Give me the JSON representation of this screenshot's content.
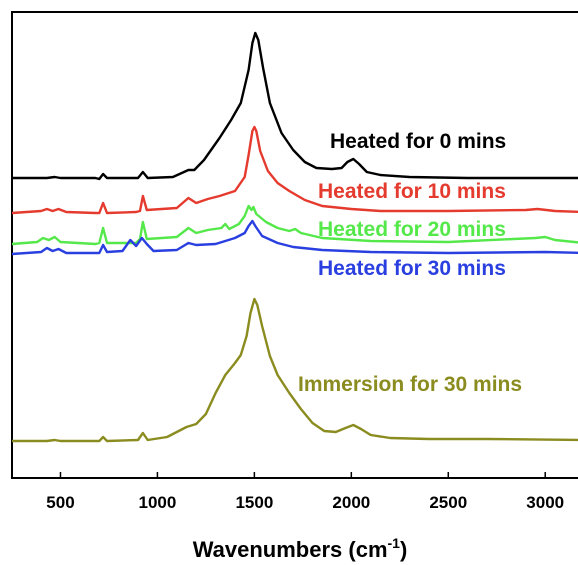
{
  "chart_data": {
    "type": "line",
    "title": "",
    "xlabel": "Wavenumbers (cm",
    "xlabel_sup": "-1",
    "xlabel_end": ")",
    "ylabel": "",
    "xlim": [
      250,
      3200
    ],
    "x_ticks": [
      500,
      1000,
      1500,
      2000,
      2500,
      3000
    ],
    "x_tick_labels": [
      "500",
      "1000",
      "1500",
      "2000",
      "2500",
      "3000"
    ],
    "y_ticks_shown": false,
    "grid": false,
    "series": [
      {
        "name": "Heated for 0 mins",
        "color": "#000000",
        "baseline": 0,
        "points": [
          [
            250,
            0
          ],
          [
            430,
            0
          ],
          [
            470,
            1
          ],
          [
            500,
            0
          ],
          [
            680,
            0
          ],
          [
            700,
            -1
          ],
          [
            720,
            4
          ],
          [
            740,
            0
          ],
          [
            900,
            0
          ],
          [
            925,
            6
          ],
          [
            950,
            0
          ],
          [
            1080,
            1
          ],
          [
            1160,
            8
          ],
          [
            1190,
            8
          ],
          [
            1240,
            18
          ],
          [
            1320,
            40
          ],
          [
            1380,
            58
          ],
          [
            1430,
            75
          ],
          [
            1470,
            108
          ],
          [
            1490,
            135
          ],
          [
            1505,
            145
          ],
          [
            1520,
            138
          ],
          [
            1545,
            110
          ],
          [
            1580,
            75
          ],
          [
            1640,
            45
          ],
          [
            1700,
            28
          ],
          [
            1760,
            16
          ],
          [
            1820,
            10
          ],
          [
            1900,
            9
          ],
          [
            1950,
            10
          ],
          [
            1980,
            16
          ],
          [
            2010,
            19
          ],
          [
            2040,
            14
          ],
          [
            2080,
            6
          ],
          [
            2150,
            3
          ],
          [
            2300,
            1
          ],
          [
            2600,
            0
          ],
          [
            3200,
            0
          ]
        ]
      },
      {
        "name": "Heated for 10 mins",
        "color": "#e53a2e",
        "baseline": 0,
        "points": [
          [
            250,
            0
          ],
          [
            400,
            2
          ],
          [
            430,
            4
          ],
          [
            460,
            2
          ],
          [
            490,
            4
          ],
          [
            530,
            1
          ],
          [
            680,
            0
          ],
          [
            700,
            0
          ],
          [
            720,
            10
          ],
          [
            740,
            0
          ],
          [
            890,
            1
          ],
          [
            910,
            2
          ],
          [
            925,
            17
          ],
          [
            945,
            3
          ],
          [
            1100,
            5
          ],
          [
            1160,
            15
          ],
          [
            1200,
            10
          ],
          [
            1260,
            14
          ],
          [
            1320,
            17
          ],
          [
            1400,
            22
          ],
          [
            1450,
            36
          ],
          [
            1470,
            58
          ],
          [
            1490,
            82
          ],
          [
            1500,
            86
          ],
          [
            1510,
            82
          ],
          [
            1530,
            62
          ],
          [
            1570,
            42
          ],
          [
            1620,
            30
          ],
          [
            1680,
            22
          ],
          [
            1760,
            13
          ],
          [
            1850,
            7
          ],
          [
            2000,
            4
          ],
          [
            2150,
            2
          ],
          [
            2500,
            2
          ],
          [
            2900,
            3
          ],
          [
            2960,
            4
          ],
          [
            3050,
            2
          ],
          [
            3200,
            1
          ]
        ]
      },
      {
        "name": "Heated for 20 mins",
        "color": "#55e84a",
        "baseline": 0,
        "points": [
          [
            250,
            0
          ],
          [
            380,
            2
          ],
          [
            410,
            6
          ],
          [
            440,
            4
          ],
          [
            470,
            7
          ],
          [
            500,
            2
          ],
          [
            680,
            0
          ],
          [
            700,
            1
          ],
          [
            720,
            16
          ],
          [
            740,
            1
          ],
          [
            890,
            1
          ],
          [
            910,
            5
          ],
          [
            925,
            22
          ],
          [
            945,
            5
          ],
          [
            1100,
            7
          ],
          [
            1160,
            16
          ],
          [
            1200,
            11
          ],
          [
            1260,
            14
          ],
          [
            1330,
            16
          ],
          [
            1350,
            20
          ],
          [
            1370,
            15
          ],
          [
            1420,
            20
          ],
          [
            1450,
            28
          ],
          [
            1470,
            38
          ],
          [
            1485,
            34
          ],
          [
            1495,
            37
          ],
          [
            1510,
            30
          ],
          [
            1560,
            22
          ],
          [
            1620,
            16
          ],
          [
            1680,
            13
          ],
          [
            1710,
            15
          ],
          [
            1740,
            11
          ],
          [
            1850,
            6
          ],
          [
            2100,
            3
          ],
          [
            2500,
            2
          ],
          [
            2950,
            6
          ],
          [
            3000,
            7
          ],
          [
            3050,
            4
          ],
          [
            3200,
            1
          ]
        ]
      },
      {
        "name": "Heated for 30 mins",
        "color": "#2a3fe0",
        "baseline": 0,
        "points": [
          [
            250,
            0
          ],
          [
            400,
            2
          ],
          [
            430,
            6
          ],
          [
            460,
            3
          ],
          [
            490,
            5
          ],
          [
            530,
            1
          ],
          [
            680,
            1
          ],
          [
            700,
            1
          ],
          [
            720,
            9
          ],
          [
            740,
            2
          ],
          [
            820,
            3
          ],
          [
            860,
            14
          ],
          [
            890,
            8
          ],
          [
            920,
            16
          ],
          [
            945,
            10
          ],
          [
            980,
            3
          ],
          [
            1100,
            4
          ],
          [
            1160,
            11
          ],
          [
            1200,
            9
          ],
          [
            1300,
            10
          ],
          [
            1400,
            16
          ],
          [
            1450,
            21
          ],
          [
            1470,
            28
          ],
          [
            1490,
            33
          ],
          [
            1505,
            28
          ],
          [
            1540,
            18
          ],
          [
            1620,
            11
          ],
          [
            1700,
            7
          ],
          [
            1850,
            4
          ],
          [
            2100,
            2
          ],
          [
            2500,
            1
          ],
          [
            3000,
            2
          ],
          [
            3200,
            1
          ]
        ]
      },
      {
        "name": "Immersion for 30 mins",
        "color": "#8b8c1f",
        "baseline": 0,
        "points": [
          [
            250,
            0
          ],
          [
            430,
            0
          ],
          [
            470,
            1
          ],
          [
            500,
            0
          ],
          [
            680,
            0
          ],
          [
            700,
            0
          ],
          [
            720,
            4
          ],
          [
            740,
            0
          ],
          [
            900,
            1
          ],
          [
            925,
            8
          ],
          [
            950,
            1
          ],
          [
            1050,
            4
          ],
          [
            1150,
            14
          ],
          [
            1200,
            17
          ],
          [
            1250,
            27
          ],
          [
            1300,
            48
          ],
          [
            1350,
            66
          ],
          [
            1400,
            78
          ],
          [
            1430,
            86
          ],
          [
            1460,
            105
          ],
          [
            1480,
            128
          ],
          [
            1500,
            142
          ],
          [
            1515,
            136
          ],
          [
            1540,
            115
          ],
          [
            1580,
            85
          ],
          [
            1620,
            66
          ],
          [
            1680,
            48
          ],
          [
            1740,
            32
          ],
          [
            1800,
            18
          ],
          [
            1860,
            10
          ],
          [
            1920,
            9
          ],
          [
            1970,
            13
          ],
          [
            2010,
            16
          ],
          [
            2050,
            12
          ],
          [
            2100,
            6
          ],
          [
            2200,
            3
          ],
          [
            2400,
            2
          ],
          [
            2700,
            2
          ],
          [
            3200,
            1
          ]
        ]
      }
    ]
  }
}
